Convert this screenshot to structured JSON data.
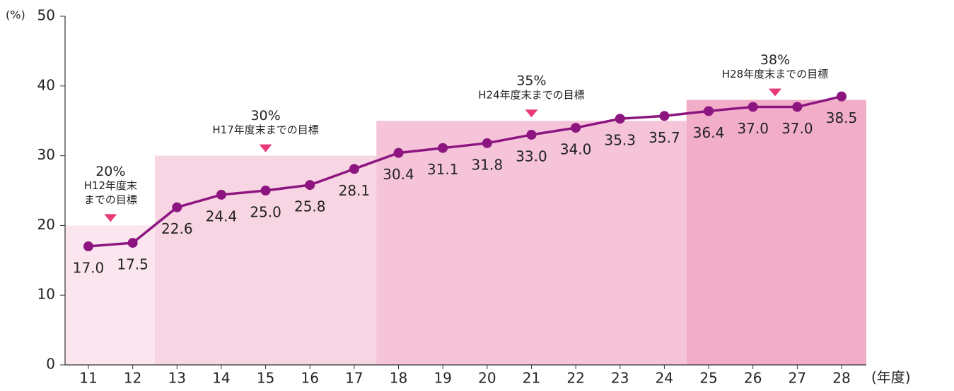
{
  "chart_data": {
    "type": "line",
    "y_unit": "(%)",
    "x_unit": "(年度)",
    "categories": [
      "11",
      "12",
      "13",
      "14",
      "15",
      "16",
      "17",
      "18",
      "19",
      "20",
      "21",
      "22",
      "23",
      "24",
      "25",
      "26",
      "27",
      "28"
    ],
    "series": [
      {
        "color": "#8c1580",
        "values": [
          17.0,
          17.5,
          22.6,
          24.4,
          25.0,
          25.8,
          28.1,
          30.4,
          31.1,
          31.8,
          33.0,
          34.0,
          35.3,
          35.7,
          36.4,
          37.0,
          37.0,
          38.5
        ],
        "value_labels": [
          "17.0",
          "17.5",
          "22.6",
          "24.4",
          "25.0",
          "25.8",
          "28.1",
          "30.4",
          "31.1",
          "31.8",
          "33.0",
          "34.0",
          "35.3",
          "35.7",
          "36.4",
          "37.0",
          "37.0",
          "38.5"
        ]
      }
    ],
    "targets": [
      {
        "value": 20,
        "label": "20%",
        "text": [
          "H12年度末",
          "までの目標"
        ],
        "from": "11",
        "to": "12",
        "color": "#fbe5ee"
      },
      {
        "value": 30,
        "label": "30%",
        "text": [
          "H17年度末までの目標"
        ],
        "from": "13",
        "to": "17",
        "color": "#f8d5e3"
      },
      {
        "value": 35,
        "label": "35%",
        "text": [
          "H24年度末までの目標"
        ],
        "from": "18",
        "to": "24",
        "color": "#f5c4d8"
      },
      {
        "value": 38,
        "label": "38%",
        "text": [
          "H28年度末までの目標"
        ],
        "from": "25",
        "to": "28",
        "color": "#f2adc9"
      }
    ],
    "ylim": [
      0,
      50
    ],
    "yticks": [
      0,
      10,
      20,
      30,
      40,
      50
    ]
  }
}
